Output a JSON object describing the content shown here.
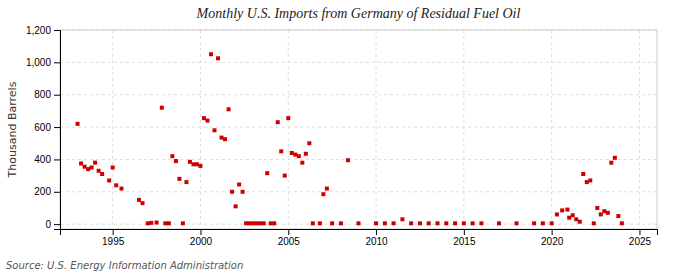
{
  "chart_data": {
    "type": "scatter",
    "title": "Monthly U.S. Imports from Germany of Residual Fuel Oil",
    "ylabel": "Thousand Barrels",
    "source": "Source: U.S. Energy Information Administration",
    "color": "#cc0000",
    "marker": "square",
    "grid": true,
    "xlim": [
      1992.0,
      2026.0
    ],
    "ylim": [
      -30,
      1200
    ],
    "xticks": [
      1995,
      2000,
      2005,
      2010,
      2015,
      2020,
      2025
    ],
    "yticks": [
      0,
      200,
      400,
      600,
      800,
      {
        "value": 1000,
        "label": "1,000"
      },
      {
        "value": 1200,
        "label": "1,200"
      }
    ],
    "x": [
      1993.0,
      1993.2,
      1993.4,
      1993.6,
      1993.8,
      1994.0,
      1994.2,
      1994.4,
      1994.8,
      1995.0,
      1995.2,
      1995.5,
      1996.5,
      1996.7,
      1997.0,
      1997.2,
      1997.5,
      1997.8,
      1998.0,
      1998.2,
      1998.4,
      1998.6,
      1998.8,
      1999.0,
      1999.2,
      1999.4,
      1999.6,
      1999.8,
      2000.0,
      2000.2,
      2000.4,
      2000.6,
      2000.8,
      2001.0,
      2001.2,
      2001.4,
      2001.6,
      2001.8,
      2002.0,
      2002.2,
      2002.4,
      2002.6,
      2002.8,
      2003.0,
      2003.2,
      2003.4,
      2003.6,
      2003.8,
      2004.0,
      2004.2,
      2004.4,
      2004.6,
      2004.8,
      2005.0,
      2005.2,
      2005.4,
      2005.6,
      2005.8,
      2006.0,
      2006.2,
      2006.4,
      2006.8,
      2007.0,
      2007.2,
      2007.5,
      2008.0,
      2008.4,
      2009.0,
      2010.0,
      2010.5,
      2011.0,
      2011.5,
      2012.0,
      2012.5,
      2013.0,
      2013.5,
      2014.0,
      2014.5,
      2015.0,
      2015.5,
      2016.0,
      2017.0,
      2018.0,
      2019.0,
      2019.5,
      2020.0,
      2020.3,
      2020.6,
      2020.9,
      2021.0,
      2021.2,
      2021.4,
      2021.6,
      2021.8,
      2022.0,
      2022.2,
      2022.4,
      2022.6,
      2022.8,
      2023.0,
      2023.2,
      2023.4,
      2023.6,
      2023.8,
      2024.0
    ],
    "values": [
      620,
      375,
      355,
      340,
      350,
      380,
      330,
      310,
      270,
      350,
      240,
      220,
      150,
      130,
      5,
      8,
      10,
      720,
      5,
      5,
      420,
      390,
      280,
      5,
      260,
      385,
      370,
      370,
      360,
      655,
      640,
      1050,
      580,
      1025,
      535,
      525,
      710,
      200,
      110,
      245,
      200,
      5,
      5,
      5,
      5,
      5,
      5,
      315,
      5,
      5,
      630,
      450,
      300,
      655,
      440,
      430,
      420,
      380,
      435,
      500,
      5,
      5,
      185,
      220,
      5,
      5,
      395,
      5,
      5,
      5,
      5,
      30,
      5,
      5,
      5,
      5,
      5,
      5,
      5,
      5,
      5,
      5,
      5,
      5,
      5,
      5,
      60,
      85,
      90,
      40,
      55,
      30,
      15,
      310,
      260,
      270,
      5,
      100,
      60,
      80,
      70,
      380,
      410,
      50,
      5
    ]
  }
}
